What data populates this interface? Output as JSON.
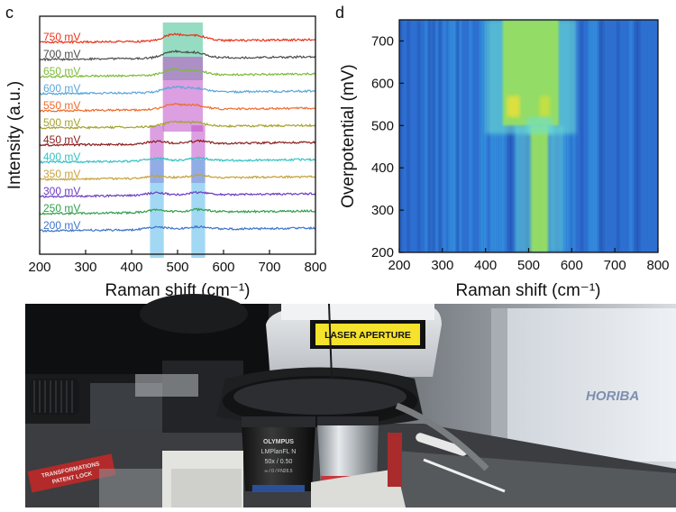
{
  "panels": {
    "c": {
      "letter": "c"
    },
    "d": {
      "letter": "d"
    }
  },
  "chart_data": [
    {
      "type": "line",
      "panel": "c",
      "xlabel": "Raman shift (cm⁻¹)",
      "ylabel": "Intensity (a.u.)",
      "xlim": [
        200,
        800
      ],
      "xticks": [
        200,
        300,
        400,
        500,
        600,
        700,
        800
      ],
      "yticks_shown": false,
      "grid": false,
      "highlight_bands": [
        {
          "from": 468,
          "to": 555,
          "y_from_series": "750 mV",
          "y_to_series": "650 mV",
          "color": "#3fbf8f"
        },
        {
          "from": 468,
          "to": 555,
          "y_from_series": "650 mV",
          "y_to_series": "500 mV",
          "color": "#c050c8"
        },
        {
          "from": 440,
          "to": 470,
          "y_from_series": "450 mV",
          "y_to_series": "350 mV",
          "color": "#c050c8"
        },
        {
          "from": 530,
          "to": 560,
          "y_from_series": "450 mV",
          "y_to_series": "350 mV",
          "color": "#c050c8"
        },
        {
          "from": 440,
          "to": 470,
          "y_from_series": "350 mV",
          "y_to_series": "200 mV",
          "color": "#55b8ea"
        },
        {
          "from": 530,
          "to": 560,
          "y_from_series": "350 mV",
          "y_to_series": "200 mV",
          "color": "#55b8ea"
        }
      ],
      "series": [
        {
          "name": "750 mV",
          "color": "#e8341c",
          "peaks": [
            [
              490,
              1.0
            ],
            [
              540,
              0.8
            ]
          ]
        },
        {
          "name": "700 mV",
          "color": "#4a4a4a",
          "peaks": [
            [
              490,
              1.0
            ],
            [
              540,
              0.8
            ]
          ]
        },
        {
          "name": "650 mV",
          "color": "#7dbb3a",
          "peaks": [
            [
              490,
              0.9
            ],
            [
              540,
              0.7
            ]
          ]
        },
        {
          "name": "600 mV",
          "color": "#5aa7d8",
          "peaks": [
            [
              490,
              0.8
            ],
            [
              540,
              0.6
            ]
          ]
        },
        {
          "name": "550 mV",
          "color": "#ef6a2a",
          "peaks": [
            [
              490,
              0.8
            ],
            [
              540,
              0.6
            ]
          ]
        },
        {
          "name": "500 mV",
          "color": "#a3a12a",
          "peaks": [
            [
              490,
              0.7
            ],
            [
              540,
              0.6
            ]
          ]
        },
        {
          "name": "450 mV",
          "color": "#8a1c1c",
          "peaks": [
            [
              455,
              0.4
            ],
            [
              545,
              0.4
            ]
          ]
        },
        {
          "name": "400 mV",
          "color": "#33c1c4",
          "peaks": [
            [
              455,
              0.4
            ],
            [
              545,
              0.4
            ]
          ]
        },
        {
          "name": "350 mV",
          "color": "#c7a23a",
          "peaks": [
            [
              455,
              0.4
            ],
            [
              545,
              0.4
            ]
          ]
        },
        {
          "name": "300 mV",
          "color": "#6a3dc2",
          "peaks": [
            [
              455,
              0.4
            ],
            [
              545,
              0.4
            ]
          ]
        },
        {
          "name": "250 mV",
          "color": "#2e9f4a",
          "peaks": [
            [
              455,
              0.4
            ],
            [
              545,
              0.4
            ]
          ]
        },
        {
          "name": "200 mV",
          "color": "#3e74c8",
          "peaks": [
            [
              455,
              0.4
            ],
            [
              545,
              0.4
            ]
          ]
        }
      ]
    },
    {
      "type": "heatmap",
      "panel": "d",
      "xlabel": "Raman shift (cm⁻¹)",
      "ylabel": "Overpotential (mV)",
      "xlim": [
        200,
        800
      ],
      "ylim": [
        200,
        750
      ],
      "xticks": [
        200,
        300,
        400,
        500,
        600,
        700,
        800
      ],
      "yticks": [
        200,
        300,
        400,
        500,
        600,
        700
      ],
      "colormap": [
        "#1d3f9e",
        "#2d6fd0",
        "#3ab0ea",
        "#70e0d0",
        "#9be25b",
        "#e6e03a"
      ],
      "features": [
        {
          "description_x": [
            440,
            570
          ],
          "y_range": [
            500,
            750
          ],
          "level": 0.55
        },
        {
          "description_x": [
            450,
            480
          ],
          "y_range": [
            520,
            570
          ],
          "level": 0.95
        },
        {
          "description_x": [
            525,
            550
          ],
          "y_range": [
            520,
            570
          ],
          "level": 0.8
        },
        {
          "description_x": [
            505,
            545
          ],
          "y_range": [
            200,
            500
          ],
          "level": 0.55
        }
      ]
    }
  ],
  "photo": {
    "laser_label": "LASER APERTURE",
    "brand_label": "HORIBA",
    "objective_brand": "OLYMPUS",
    "objective_model": "LMPlanFL N",
    "objective_spec": "50x / 0.50",
    "objective_spec2": "∞ / 0 / FN26.5",
    "sticker_text": "TRANSFORMATIONS",
    "sticker_text2": "PATENT LOCK"
  }
}
